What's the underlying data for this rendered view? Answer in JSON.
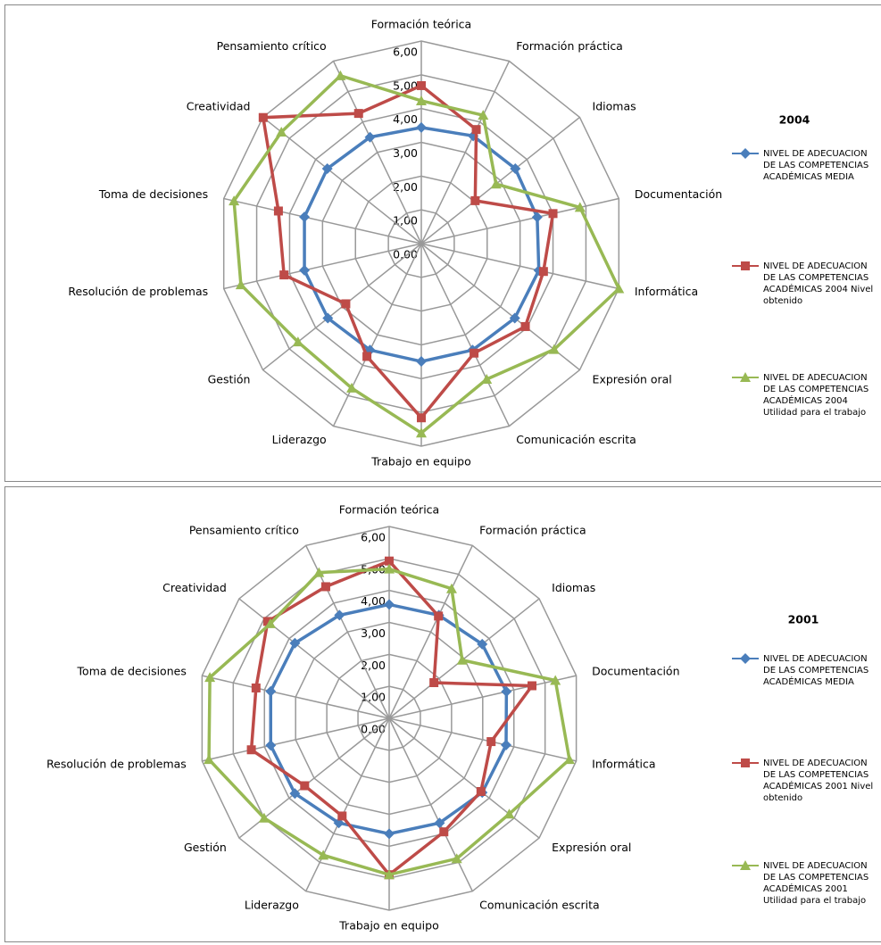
{
  "chart_data": [
    {
      "type": "radar",
      "title": "2004",
      "categories": [
        "Formación teórica",
        "Formación práctica",
        "Idiomas",
        "Documentación",
        "Informática",
        "Expresión oral",
        "Comunicación escrita",
        "Trabajo en equipo",
        "Liderazgo",
        "Gestión",
        "Resolución de problemas",
        "Toma de decisiones",
        "Creatividad",
        "Pensamiento crítico"
      ],
      "ylim": [
        0,
        6
      ],
      "yticks": [
        {
          "value": 0,
          "label": "0,00"
        },
        {
          "value": 1,
          "label": "1,00"
        },
        {
          "value": 2,
          "label": "2,00"
        },
        {
          "value": 3,
          "label": "3,00"
        },
        {
          "value": 4,
          "label": "4,00"
        },
        {
          "value": 5,
          "label": "5,00"
        },
        {
          "value": 6,
          "label": "6,00"
        }
      ],
      "series": [
        {
          "name": "NIVEL DE ADECUACION DE LAS COMPETENCIAS ACADÉMICAS MEDIA",
          "color": "#4a7ebb",
          "values": [
            3.44,
            3.54,
            3.56,
            3.52,
            3.57,
            3.54,
            3.5,
            3.49,
            3.5,
            3.54,
            3.55,
            3.55,
            3.56,
            3.5
          ]
        },
        {
          "name": "NIVEL DE ADECUACION DE LAS COMPETENCIAS ACADÉMICAS 2004 Nivel obtenido",
          "color": "#be4b48",
          "values": [
            4.68,
            3.75,
            2.04,
            4.0,
            3.71,
            3.94,
            3.6,
            5.16,
            3.71,
            2.86,
            4.17,
            4.34,
            5.99,
            4.28
          ]
        },
        {
          "name": "NIVEL DE ADECUACION DE LAS COMPETENCIAS ACADÉMICAS 2004 Utilidad para el trabajo",
          "color": "#98b954",
          "values": [
            4.23,
            4.22,
            2.83,
            4.82,
            6.0,
            5.03,
            4.46,
            5.61,
            4.75,
            4.67,
            5.48,
            5.69,
            5.3,
            5.52
          ]
        }
      ]
    },
    {
      "type": "radar",
      "title": "2001",
      "categories": [
        "Formación teórica",
        "Formación práctica",
        "Idiomas",
        "Documentación",
        "Informática",
        "Expresión oral",
        "Comunicación escrita",
        "Trabajo en equipo",
        "Liderazgo",
        "Gestión",
        "Resolución de problemas",
        "Toma de decisiones",
        "Creatividad",
        "Pensamiento crítico"
      ],
      "ylim": [
        0,
        6
      ],
      "yticks": [
        {
          "value": 0,
          "label": "0,00"
        },
        {
          "value": 1,
          "label": "1,00"
        },
        {
          "value": 2,
          "label": "2,00"
        },
        {
          "value": 3,
          "label": "3,00"
        },
        {
          "value": 4,
          "label": "4,00"
        },
        {
          "value": 5,
          "label": "5,00"
        },
        {
          "value": 6,
          "label": "6,00"
        }
      ],
      "series": [
        {
          "name": "NIVEL DE ADECUACION DE LAS COMPETENCIAS ACADÉMICAS MEDIA",
          "color": "#4a7ebb",
          "values": [
            3.56,
            3.58,
            3.72,
            3.76,
            3.75,
            3.72,
            3.63,
            3.61,
            3.63,
            3.77,
            3.8,
            3.8,
            3.77,
            3.58
          ]
        },
        {
          "name": "NIVEL DE ADECUACION DE LAS COMPETENCIAS ACADÉMICAS 2001 Nivel obtenido",
          "color": "#be4b48",
          "values": [
            4.92,
            3.55,
            1.79,
            4.58,
            3.27,
            3.67,
            3.94,
            4.89,
            3.39,
            3.38,
            4.42,
            4.27,
            4.86,
            4.57
          ]
        },
        {
          "name": "NIVEL DE ADECUACION DE LAS COMPETENCIAS ACADÉMICAS 2001 Utilidad para el trabajo",
          "color": "#98b954",
          "values": [
            4.67,
            4.5,
            2.92,
            5.33,
            5.78,
            4.8,
            4.87,
            4.89,
            4.75,
            5.0,
            5.78,
            5.75,
            4.75,
            5.06
          ]
        }
      ]
    }
  ]
}
